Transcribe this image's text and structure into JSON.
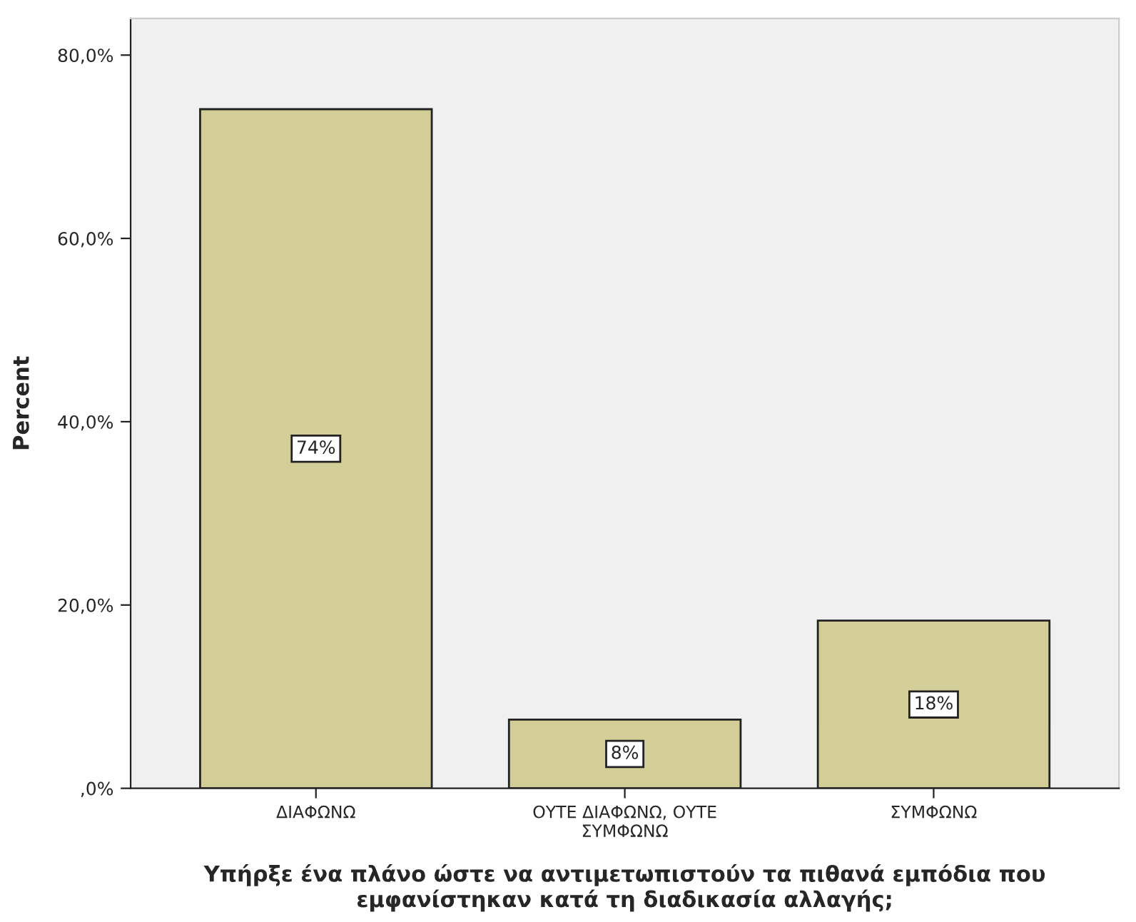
{
  "chart_data": {
    "type": "bar",
    "xlabel": "Υπήρξε ένα πλάνο ώστε να αντιμετωπιστούν τα πιθανά εμπόδια που\nεμφανίστηκαν κατά τη διαδικασία αλλαγής;",
    "ylabel": "Percent",
    "categories": [
      "ΔΙΑΦΩΝΩ",
      "ΟΥΤΕ ΔΙΑΦΩΝΩ, ΟΥΤΕ\nΣΥΜΦΩΝΩ",
      "ΣΥΜΦΩΝΩ"
    ],
    "values": [
      74.1,
      7.5,
      18.3
    ],
    "value_labels": [
      "74%",
      "8%",
      "18%"
    ],
    "color": "#d3ce97",
    "ylim": [
      0,
      84
    ],
    "yticks": [
      {
        "value": 0,
        "label": ",0%"
      },
      {
        "value": 20,
        "label": "20,0%"
      },
      {
        "value": 40,
        "label": "40,0%"
      },
      {
        "value": 60,
        "label": "60,0%"
      },
      {
        "value": 80,
        "label": "80,0%"
      }
    ],
    "grid": false
  }
}
